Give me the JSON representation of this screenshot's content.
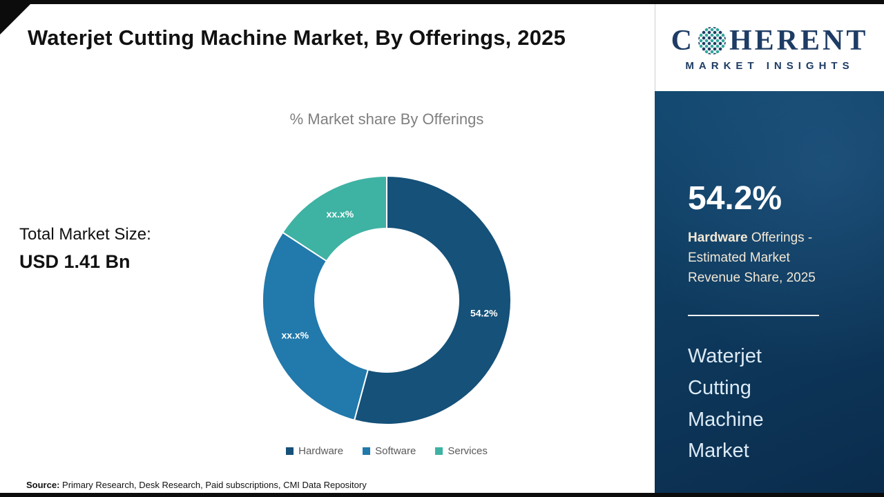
{
  "header": {
    "title": "Waterjet Cutting Machine Market, By Offerings, 2025"
  },
  "left": {
    "total_label": "Total Market Size:",
    "total_value": "USD 1.41 Bn"
  },
  "chart_data": {
    "type": "pie",
    "subtype": "donut",
    "title": "% Market share By Offerings",
    "legend_position": "bottom",
    "start_angle_deg": -90,
    "series": [
      {
        "name": "Hardware",
        "value": 54.2,
        "label": "54.2%",
        "color": "#155179"
      },
      {
        "name": "Software",
        "value": 30.0,
        "label": "xx.x%",
        "color": "#2279ab"
      },
      {
        "name": "Services",
        "value": 15.8,
        "label": "xx.x%",
        "color": "#3eb2a3"
      }
    ]
  },
  "sidebar": {
    "logo": {
      "word_start": "C",
      "word_end": "HERENT",
      "subline": "MARKET INSIGHTS"
    },
    "stat_value": "54.2%",
    "stat_desc_bold": "Hardware",
    "stat_desc_rest": " Offerings - Estimated Market Revenue Share, 2025",
    "panel_title": "Waterjet Cutting Machine Market"
  },
  "footer": {
    "source_label": "Source:",
    "source_text": " Primary Research, Desk Research, Paid subscriptions, CMI Data Repository"
  },
  "colors": {
    "hardware": "#155179",
    "software": "#2279ab",
    "services": "#3eb2a3",
    "panel_navy": "#0e3a5e",
    "cream_text": "#f2e8d5",
    "logo_navy": "#1e3c64",
    "logo_teal": "#2fa79b"
  }
}
